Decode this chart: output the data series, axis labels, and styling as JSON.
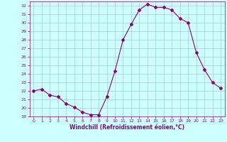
{
  "x": [
    0,
    1,
    2,
    3,
    4,
    5,
    6,
    7,
    8,
    9,
    10,
    11,
    12,
    13,
    14,
    15,
    16,
    17,
    18,
    19,
    20,
    21,
    22,
    23
  ],
  "y": [
    22.0,
    22.2,
    21.5,
    21.3,
    20.5,
    20.1,
    19.5,
    19.2,
    19.2,
    21.3,
    24.3,
    28.0,
    29.8,
    31.5,
    32.2,
    31.8,
    31.8,
    31.5,
    30.5,
    30.0,
    26.5,
    24.5,
    23.0,
    22.3
  ],
  "line_color": "#880088",
  "marker": "D",
  "marker_size": 2.0,
  "bg_color": "#ccffff",
  "grid_color": "#aacccc",
  "xlabel": "Windchill (Refroidissement éolien,°C)",
  "xlabel_color": "#880088",
  "tick_color": "#880088",
  "ylim": [
    19,
    32.5
  ],
  "xlim": [
    -0.5,
    23.5
  ],
  "yticks": [
    19,
    20,
    21,
    22,
    23,
    24,
    25,
    26,
    27,
    28,
    29,
    30,
    31,
    32
  ],
  "xticks": [
    0,
    1,
    2,
    3,
    4,
    5,
    6,
    7,
    8,
    9,
    10,
    11,
    12,
    13,
    14,
    15,
    16,
    17,
    18,
    19,
    20,
    21,
    22,
    23
  ]
}
